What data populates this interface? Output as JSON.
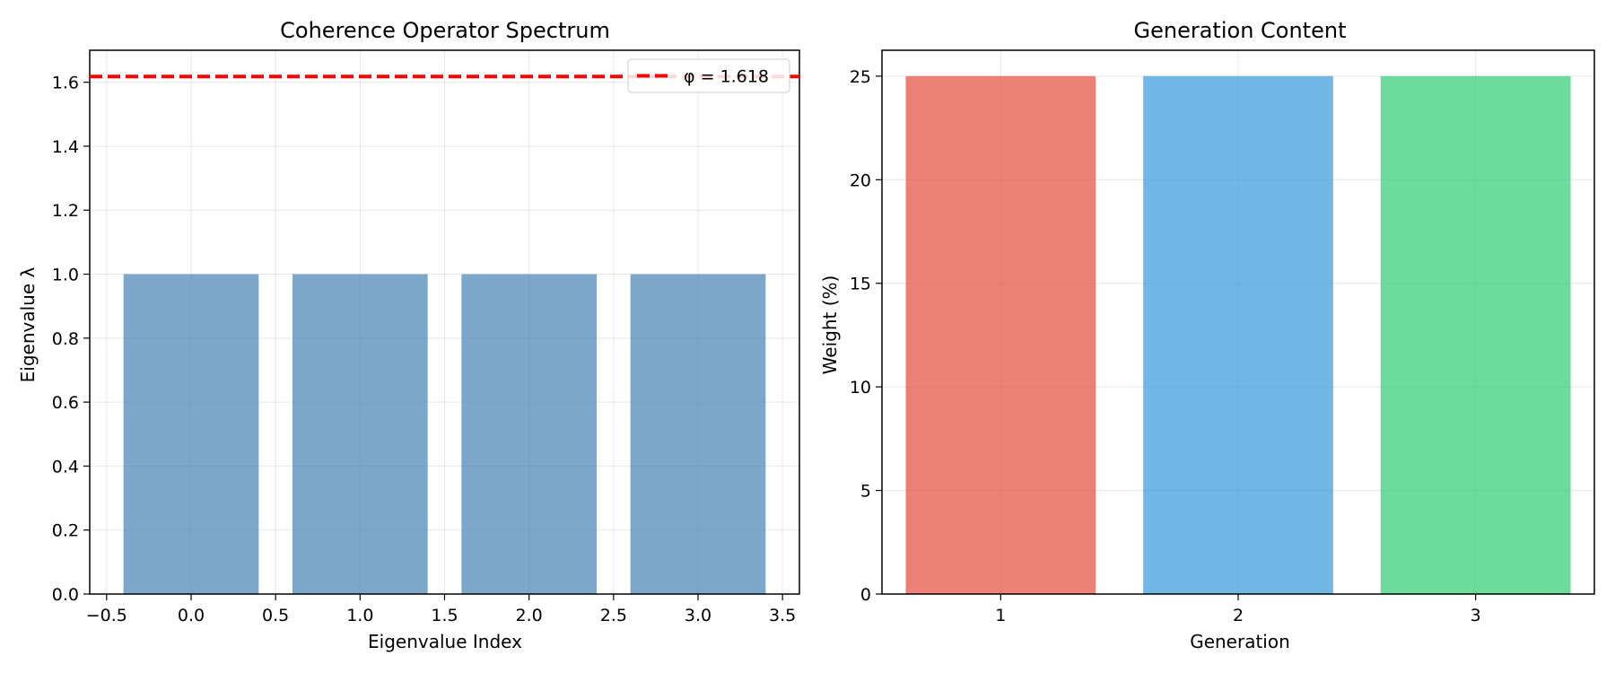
{
  "chart_data": [
    {
      "type": "bar",
      "title": "Coherence Operator Spectrum",
      "xlabel": "Eigenvalue Index",
      "ylabel": "Eigenvalue λ",
      "x": [
        0,
        1,
        2,
        3
      ],
      "values": [
        1.0,
        1.0,
        1.0,
        1.0
      ],
      "bar_width": 0.8,
      "bar_color": "#4682b4",
      "bar_opacity": 0.7,
      "xlim": [
        -0.6,
        3.6
      ],
      "ylim": [
        0,
        1.7
      ],
      "xticks": [
        -0.5,
        0.0,
        0.5,
        1.0,
        1.5,
        2.0,
        2.5,
        3.0,
        3.5
      ],
      "xtick_labels": [
        "−0.5",
        "0.0",
        "0.5",
        "1.0",
        "1.5",
        "2.0",
        "2.5",
        "3.0",
        "3.5"
      ],
      "yticks": [
        0.0,
        0.2,
        0.4,
        0.6,
        0.8,
        1.0,
        1.2,
        1.4,
        1.6
      ],
      "ytick_labels": [
        "0.0",
        "0.2",
        "0.4",
        "0.6",
        "0.8",
        "1.0",
        "1.2",
        "1.4",
        "1.6"
      ],
      "hline": {
        "y": 1.618,
        "label": "φ = 1.618",
        "color": "#ff0000",
        "style": "dashed"
      },
      "legend": {
        "position": "top-right",
        "entries": [
          "φ = 1.618"
        ]
      },
      "grid": true
    },
    {
      "type": "bar",
      "title": "Generation Content",
      "xlabel": "Generation",
      "ylabel": "Weight (%)",
      "categories": [
        "1",
        "2",
        "3"
      ],
      "values": [
        25,
        25,
        25
      ],
      "bar_width": 0.8,
      "bar_colors": [
        "#e74c3c",
        "#3498db",
        "#2ecc71"
      ],
      "bar_opacity": 0.7,
      "xlim": [
        -0.5,
        2.5
      ],
      "ylim": [
        0,
        26.25
      ],
      "yticks": [
        0,
        5,
        10,
        15,
        20,
        25
      ],
      "ytick_labels": [
        "0",
        "5",
        "10",
        "15",
        "20",
        "25"
      ],
      "grid": true
    }
  ]
}
